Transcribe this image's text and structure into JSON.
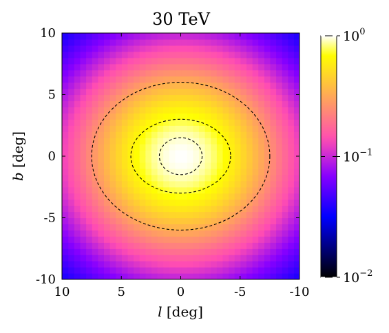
{
  "chart_data": {
    "type": "heatmap",
    "title": "30 TeV",
    "xlabel": {
      "var": "l",
      "unit": "[deg]"
    },
    "ylabel": {
      "var": "b",
      "unit": "[deg]"
    },
    "xlim": [
      10,
      -10
    ],
    "ylim": [
      -10,
      10
    ],
    "x_ticks": [
      {
        "value": 10,
        "label": "10"
      },
      {
        "value": 5,
        "label": "5"
      },
      {
        "value": 0,
        "label": "0"
      },
      {
        "value": -5,
        "label": "-5"
      },
      {
        "value": -10,
        "label": "-10"
      }
    ],
    "y_ticks": [
      {
        "value": 10,
        "label": "10"
      },
      {
        "value": 5,
        "label": "5"
      },
      {
        "value": 0,
        "label": "0"
      },
      {
        "value": -5,
        "label": "-5"
      },
      {
        "value": -10,
        "label": "-10"
      }
    ],
    "grid": false,
    "colorbar": {
      "scale": "log",
      "colormap": "gnuplot2",
      "range": [
        0.01,
        1
      ],
      "ticks": [
        {
          "value": 1,
          "base": "10",
          "exp": "0"
        },
        {
          "value": 0.1,
          "base": "10",
          "exp": "−1"
        },
        {
          "value": 0.01,
          "base": "10",
          "exp": "−2"
        }
      ]
    },
    "pixel_size_deg": 0.5,
    "peak": {
      "l": 0,
      "b": 0,
      "value": 1.0
    },
    "profile_scale_deg": {
      "l": 4.5,
      "b": 4.1
    },
    "contours": [
      {
        "level": 0.68,
        "half_width_l": 1.8,
        "half_height_b": 1.5
      },
      {
        "level": 0.33,
        "half_width_l": 4.2,
        "half_height_b": 3.0
      },
      {
        "level": 0.1,
        "half_width_l": 7.5,
        "half_height_b": 6.0
      }
    ]
  }
}
